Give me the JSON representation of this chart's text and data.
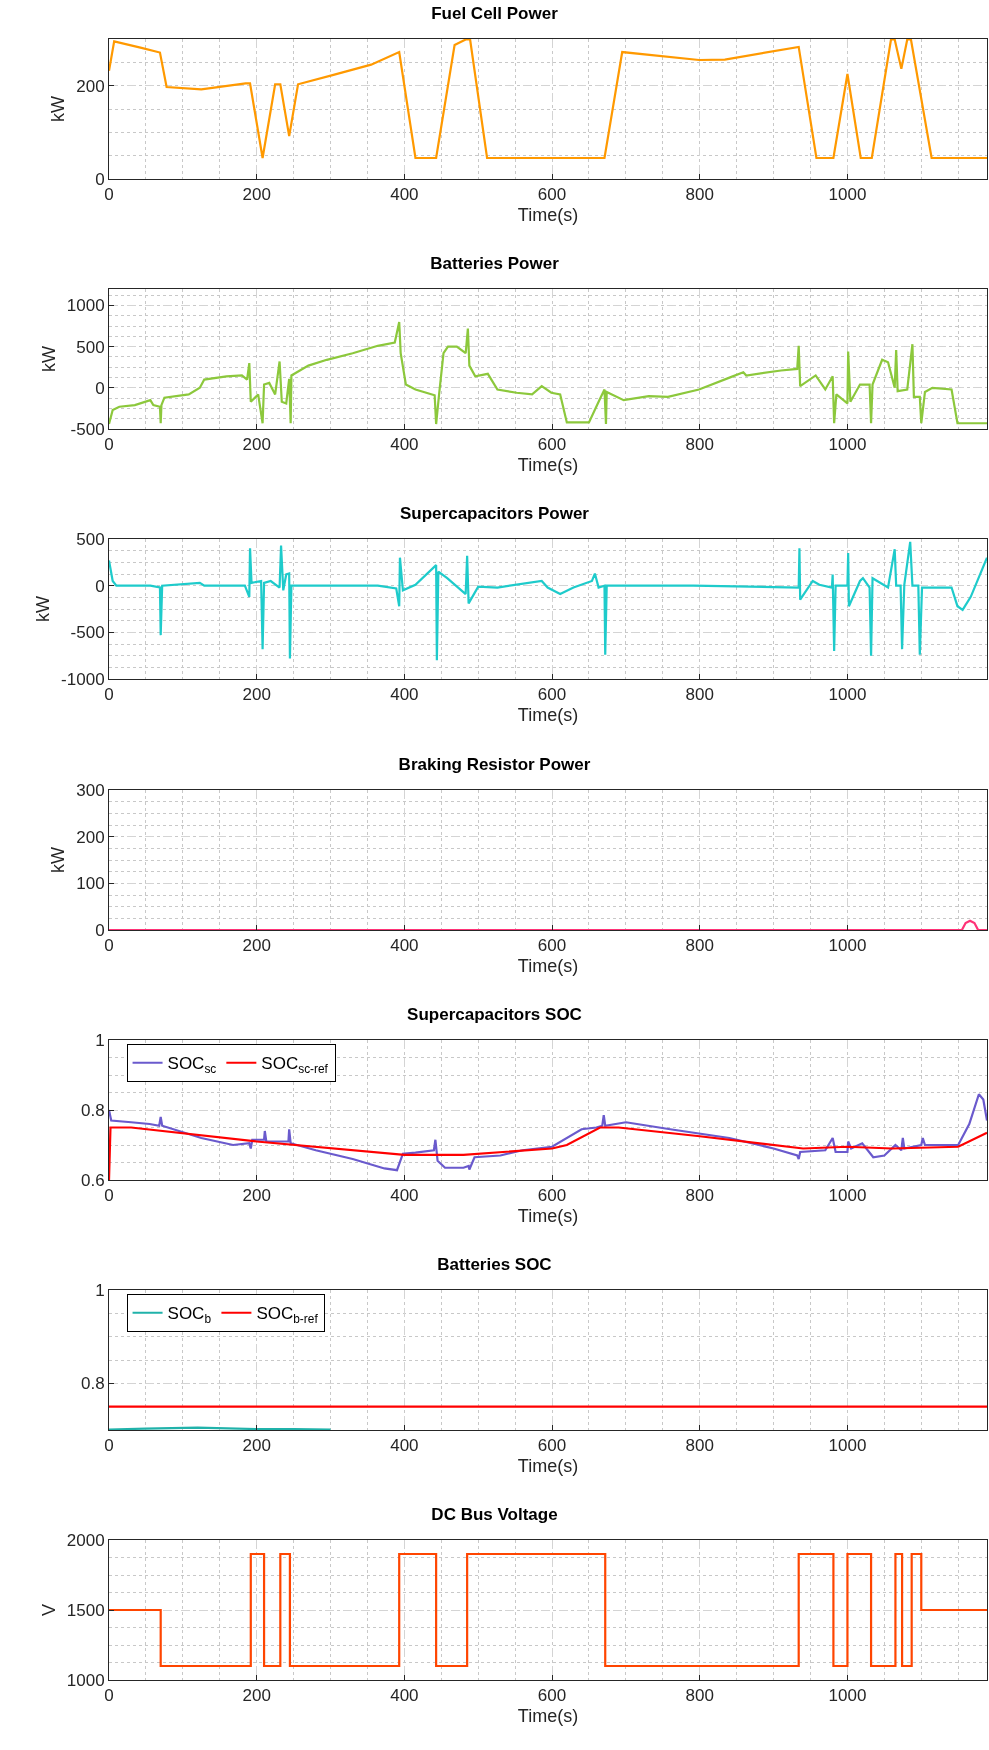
{
  "chart_data": [
    {
      "type": "line",
      "title": "Fuel Cell Power",
      "xlabel": "Time(s)",
      "ylabel": "kW",
      "xlim": [
        0,
        1189
      ],
      "xticks": [
        0,
        200,
        400,
        600,
        800,
        1000
      ],
      "ylim": [
        0,
        300
      ],
      "yticks": [
        0,
        200
      ],
      "grid": true,
      "series": [
        {
          "color": "#ff9900",
          "x": [
            0,
            7,
            44,
            69,
            78,
            125,
            185,
            191,
            208,
            225,
            232,
            244,
            256,
            304,
            355,
            393,
            415,
            443,
            468,
            483,
            489,
            512,
            671,
            695,
            799,
            834,
            934,
            958,
            981,
            1000,
            1018,
            1033,
            1059,
            1064,
            1073,
            1081,
            1086,
            1114,
            1189
          ],
          "values": [
            232,
            295,
            281,
            271,
            197,
            192,
            205,
            205,
            45,
            203,
            203,
            92,
            203,
            223,
            245,
            272,
            45,
            45,
            287,
            299,
            299,
            45,
            45,
            272,
            255,
            256,
            283,
            45,
            45,
            225,
            45,
            45,
            299,
            299,
            236,
            299,
            299,
            45,
            45
          ]
        }
      ]
    },
    {
      "type": "line",
      "title": "Batteries Power",
      "xlabel": "Time(s)",
      "ylabel": "kW",
      "xlim": [
        0,
        1189
      ],
      "xticks": [
        0,
        200,
        400,
        600,
        800,
        1000
      ],
      "ylim": [
        -500,
        1200
      ],
      "yticks": [
        -500,
        0,
        500,
        1000
      ],
      "grid": true,
      "series": [
        {
          "color": "#8cc83c",
          "x": [
            0,
            5,
            14,
            35,
            56,
            60,
            69,
            70,
            71,
            75,
            108,
            123,
            129,
            159,
            180,
            187,
            190,
            192,
            202,
            208,
            210,
            217,
            225,
            231,
            234,
            240,
            244,
            246,
            247,
            270,
            295,
            330,
            364,
            387,
            393,
            395,
            402,
            415,
            441,
            443,
            447,
            453,
            459,
            471,
            483,
            486,
            488,
            496,
            513,
            526,
            552,
            573,
            586,
            599,
            611,
            620,
            650,
            664,
            671,
            673,
            674,
            697,
            731,
            757,
            799,
            842,
            859,
            863,
            910,
            932,
            934,
            936,
            957,
            970,
            980,
            982,
            985,
            1000,
            1001,
            1004,
            1017,
            1030,
            1032,
            1034,
            1047,
            1055,
            1064,
            1066,
            1068,
            1081,
            1088,
            1090,
            1098,
            1100,
            1105,
            1115,
            1141,
            1149,
            1189
          ],
          "values": [
            -440,
            -270,
            -230,
            -210,
            -150,
            -210,
            -230,
            -430,
            -210,
            -120,
            -80,
            0,
            100,
            140,
            150,
            100,
            300,
            -170,
            -80,
            -430,
            40,
            60,
            -80,
            320,
            -170,
            -190,
            110,
            -430,
            150,
            270,
            340,
            420,
            510,
            550,
            800,
            420,
            40,
            -20,
            -90,
            -440,
            -80,
            420,
            500,
            500,
            420,
            720,
            270,
            140,
            170,
            -20,
            -60,
            -80,
            20,
            -60,
            -80,
            -420,
            -420,
            -150,
            -20,
            -440,
            -50,
            -150,
            -100,
            -110,
            -20,
            130,
            190,
            150,
            210,
            230,
            510,
            20,
            150,
            -20,
            140,
            -430,
            -80,
            -190,
            440,
            -170,
            40,
            40,
            -430,
            40,
            340,
            310,
            0,
            460,
            -40,
            -20,
            530,
            -110,
            -110,
            -430,
            -50,
            0,
            -20,
            -430,
            -430
          ]
        }
      ]
    },
    {
      "type": "line",
      "title": "Supercapacitors Power",
      "xlabel": "Time(s)",
      "ylabel": "kW",
      "xlim": [
        0,
        1189
      ],
      "xticks": [
        0,
        200,
        400,
        600,
        800,
        1000
      ],
      "ylim": [
        -1000,
        500
      ],
      "yticks": [
        -1000,
        -500,
        0,
        500
      ],
      "grid": true,
      "series": [
        {
          "color": "#1ecbcb",
          "x": [
            0,
            5,
            10,
            56,
            69,
            70,
            72,
            123,
            129,
            184,
            190,
            191,
            193,
            206,
            208,
            210,
            219,
            231,
            233,
            236,
            240,
            244,
            245,
            247,
            295,
            364,
            389,
            393,
            394,
            398,
            415,
            443,
            444,
            446,
            458,
            483,
            485,
            487,
            500,
            526,
            586,
            594,
            611,
            629,
            654,
            658,
            663,
            671,
            672,
            674,
            791,
            934,
            935,
            936,
            953,
            962,
            979,
            980,
            982,
            984,
            1000,
            1001,
            1002,
            1017,
            1021,
            1030,
            1032,
            1034,
            1055,
            1064,
            1066,
            1072,
            1074,
            1077,
            1085,
            1088,
            1096,
            1098,
            1101,
            1141,
            1149,
            1156,
            1167,
            1189
          ],
          "values": [
            270,
            50,
            0,
            0,
            -20,
            -530,
            0,
            30,
            0,
            0,
            -120,
            400,
            30,
            50,
            -680,
            30,
            50,
            -20,
            430,
            -50,
            120,
            130,
            -780,
            0,
            0,
            0,
            -30,
            -220,
            300,
            -50,
            10,
            220,
            -800,
            150,
            80,
            -90,
            320,
            -190,
            -10,
            -20,
            50,
            -20,
            -90,
            -20,
            50,
            130,
            -20,
            0,
            -740,
            0,
            0,
            -20,
            400,
            -150,
            50,
            10,
            -20,
            120,
            -700,
            0,
            0,
            350,
            -220,
            50,
            80,
            -20,
            -750,
            80,
            -20,
            390,
            0,
            0,
            -680,
            10,
            470,
            0,
            0,
            -740,
            -20,
            -20,
            -220,
            -260,
            -120,
            300
          ]
        }
      ]
    },
    {
      "type": "line",
      "title": "Braking Resistor Power",
      "xlabel": "Time(s)",
      "ylabel": "kW",
      "xlim": [
        0,
        1189
      ],
      "xticks": [
        0,
        200,
        400,
        600,
        800,
        1000
      ],
      "ylim": [
        0,
        300
      ],
      "yticks": [
        0,
        100,
        200,
        300
      ],
      "grid": true,
      "series": [
        {
          "color": "#ff3377",
          "x": [
            0,
            1155,
            1160,
            1166,
            1172,
            1177,
            1189
          ],
          "values": [
            0,
            0,
            15,
            20,
            15,
            0,
            0
          ]
        }
      ]
    },
    {
      "type": "line",
      "title": "Supercapacitors SOC",
      "xlabel": "Time(s)",
      "xlim": [
        0,
        1189
      ],
      "xticks": [
        0,
        200,
        400,
        600,
        800,
        1000
      ],
      "ylim": [
        0.6,
        1
      ],
      "yticks": [
        0.6,
        0.8,
        1
      ],
      "grid": true,
      "legend": "top left",
      "series": [
        {
          "name": "SOC$_{sc}$",
          "color": "#6a5acd",
          "x": [
            0,
            3,
            30,
            55,
            68,
            70,
            72,
            125,
            168,
            190,
            192,
            194,
            210,
            211,
            213,
            243,
            244,
            246,
            280,
            330,
            373,
            390,
            398,
            415,
            440,
            442,
            445,
            455,
            480,
            487,
            488,
            495,
            530,
            560,
            600,
            640,
            660,
            668,
            670,
            672,
            700,
            760,
            840,
            900,
            932,
            934,
            936,
            970,
            980,
            984,
            1000,
            1001,
            1005,
            1020,
            1035,
            1050,
            1065,
            1073,
            1075,
            1077,
            1100,
            1102,
            1105,
            1150,
            1165,
            1178,
            1184,
            1189
          ],
          "values": [
            0.8,
            0.77,
            0.765,
            0.76,
            0.755,
            0.78,
            0.755,
            0.72,
            0.7,
            0.705,
            0.69,
            0.715,
            0.715,
            0.74,
            0.71,
            0.71,
            0.745,
            0.705,
            0.685,
            0.66,
            0.633,
            0.628,
            0.675,
            0.678,
            0.685,
            0.715,
            0.655,
            0.635,
            0.635,
            0.64,
            0.63,
            0.665,
            0.67,
            0.685,
            0.695,
            0.745,
            0.75,
            0.755,
            0.785,
            0.755,
            0.765,
            0.745,
            0.72,
            0.69,
            0.67,
            0.66,
            0.68,
            0.685,
            0.72,
            0.68,
            0.68,
            0.71,
            0.69,
            0.705,
            0.665,
            0.67,
            0.7,
            0.685,
            0.72,
            0.69,
            0.7,
            0.72,
            0.7,
            0.7,
            0.76,
            0.845,
            0.83,
            0.77
          ]
        },
        {
          "name": "SOC$_{sc-ref}$",
          "color": "#ff0000",
          "x": [
            0,
            2,
            30,
            200,
            400,
            480,
            600,
            620,
            665,
            690,
            800,
            940,
            1000,
            1060,
            1150,
            1189
          ],
          "values": [
            0.6,
            0.75,
            0.75,
            0.71,
            0.672,
            0.672,
            0.69,
            0.7,
            0.75,
            0.75,
            0.725,
            0.69,
            0.695,
            0.69,
            0.695,
            0.735
          ]
        }
      ]
    },
    {
      "type": "line",
      "title": "Batteries SOC",
      "xlabel": "Time(s)",
      "xlim": [
        0,
        1189
      ],
      "xticks": [
        0,
        200,
        400,
        600,
        800,
        1000
      ],
      "ylim": [
        0.7,
        1
      ],
      "yticks": [
        0.8,
        1
      ],
      "grid": true,
      "legend": "top left",
      "series": [
        {
          "name": "SOC$_{b}$",
          "color": "#20b2aa",
          "x": [
            0,
            50,
            120,
            200,
            250,
            300
          ],
          "values": [
            0.701,
            0.703,
            0.705,
            0.702,
            0.702,
            0.701
          ]
        },
        {
          "name": "SOC$_{b-ref}$",
          "color": "#ff0000",
          "x": [
            0,
            1189
          ],
          "values": [
            0.75,
            0.75
          ]
        }
      ]
    },
    {
      "type": "step",
      "title": "DC Bus Voltage",
      "xlabel": "Time(s)",
      "ylabel": "V",
      "xlim": [
        0,
        1189
      ],
      "xticks": [
        0,
        200,
        400,
        600,
        800,
        1000
      ],
      "ylim": [
        1000,
        2000
      ],
      "yticks": [
        1000,
        1500,
        2000
      ],
      "grid": true,
      "series": [
        {
          "color": "#ff4500",
          "x": [
            0,
            70,
            192,
            210,
            232,
            245,
            393,
            443,
            485,
            672,
            934,
            981,
            1000,
            1032,
            1065,
            1074,
            1087,
            1100,
            1189
          ],
          "values": [
            1500,
            1100,
            1900,
            1100,
            1900,
            1100,
            1900,
            1100,
            1900,
            1100,
            1900,
            1100,
            1900,
            1100,
            1900,
            1100,
            1900,
            1500,
            1500
          ]
        }
      ]
    }
  ]
}
